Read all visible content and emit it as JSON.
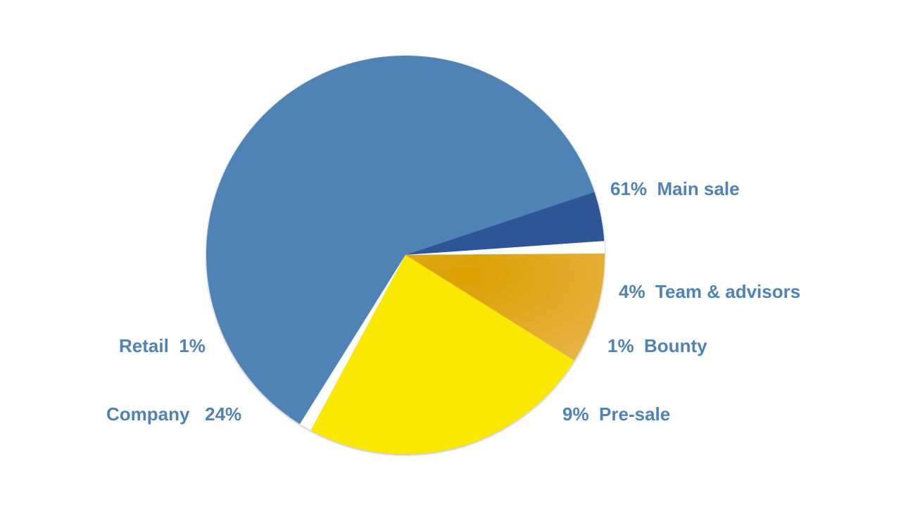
{
  "chart_data": {
    "type": "pie",
    "title": "",
    "slices": [
      {
        "name": "Main sale",
        "value": 61,
        "label": "61%  Main sale",
        "color": "#5083b5"
      },
      {
        "name": "Team & advisors",
        "value": 4,
        "label": "4%  Team & advisors",
        "color": "#2f5596"
      },
      {
        "name": "Bounty",
        "value": 1,
        "label": "1%  Bounty",
        "color": "#ffffff"
      },
      {
        "name": "Pre-sale",
        "value": 9,
        "label": "9%  Pre-sale",
        "color": "#e3a40c"
      },
      {
        "name": "Company",
        "value": 24,
        "label": "Company   24%",
        "color": "#fbe800"
      },
      {
        "name": "Retail",
        "value": 1,
        "label": "Retail  1%",
        "color": "#ffffff"
      }
    ],
    "label_color": "#5083b5"
  }
}
